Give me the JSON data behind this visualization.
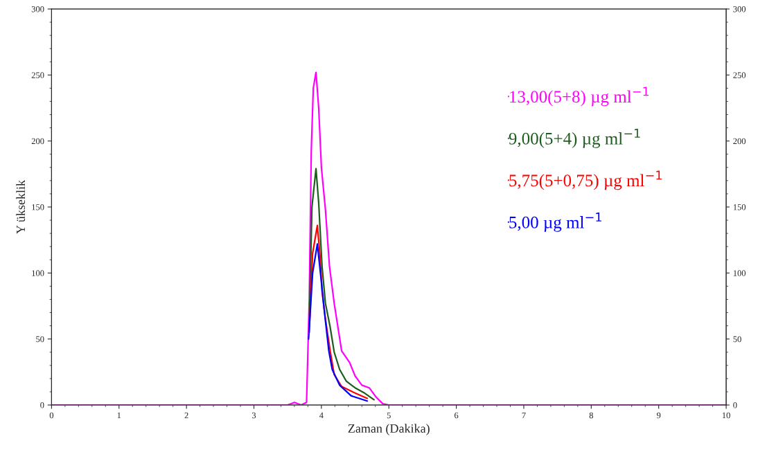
{
  "chart_data": {
    "type": "line",
    "xlabel": "Zaman (Dakika)",
    "ylabel": "Y ükseklik",
    "xlim": [
      0,
      10
    ],
    "xticks": [
      0,
      1,
      2,
      3,
      4,
      5,
      6,
      7,
      8,
      9,
      10
    ],
    "ylim": [
      0,
      300
    ],
    "yticks": [
      0,
      50,
      100,
      150,
      200,
      250,
      300
    ],
    "y2lim": [
      0,
      300
    ],
    "y2ticks": [
      0,
      50,
      100,
      150,
      200,
      250,
      300
    ],
    "grid": false,
    "legend": "right",
    "marker": "none",
    "line_style": "solid",
    "series": [
      {
        "name": "13,00(5+8) µg ml$^{−1}$",
        "color": "#ff00ff",
        "x": [
          0,
          3.5,
          3.6,
          3.7,
          3.78,
          3.82,
          3.85,
          3.88,
          3.92,
          3.96,
          4.0,
          4.06,
          4.12,
          4.19,
          4.3,
          4.42,
          4.5,
          4.6,
          4.71,
          4.81,
          4.91,
          5.0,
          10
        ],
        "values": [
          0,
          0,
          2,
          0,
          2,
          80,
          193,
          240,
          252,
          225,
          180,
          148,
          105,
          77,
          41,
          32,
          22,
          15,
          13,
          6,
          1,
          0,
          0
        ]
      },
      {
        "name": "9,00(5+4) µg ml$^{−1}$",
        "color": "#1e5c1e",
        "x": [
          3.82,
          3.86,
          3.92,
          3.96,
          4.01,
          4.06,
          4.13,
          4.19,
          4.27,
          4.37,
          4.5,
          4.64,
          4.78
        ],
        "values": [
          60,
          150,
          179,
          153,
          105,
          77,
          59,
          40,
          27,
          18,
          13,
          9,
          4
        ]
      },
      {
        "name": "5,75(5+0,75) µg ml$^{−1}$",
        "color": "#ff0000",
        "x": [
          3.82,
          3.87,
          3.94,
          3.98,
          4.01,
          4.06,
          4.13,
          4.19,
          4.3,
          4.5,
          4.68
        ],
        "values": [
          55,
          115,
          136,
          113,
          86,
          65,
          41,
          23,
          14,
          9,
          5
        ]
      },
      {
        "name": "5,00 µg ml$^{−1}$",
        "color": "#0000ff",
        "x": [
          3.81,
          3.87,
          3.94,
          3.99,
          4.04,
          4.11,
          4.16,
          4.27,
          4.44,
          4.68
        ],
        "values": [
          50,
          100,
          122,
          98,
          73,
          41,
          27,
          15,
          7,
          3
        ]
      }
    ]
  }
}
